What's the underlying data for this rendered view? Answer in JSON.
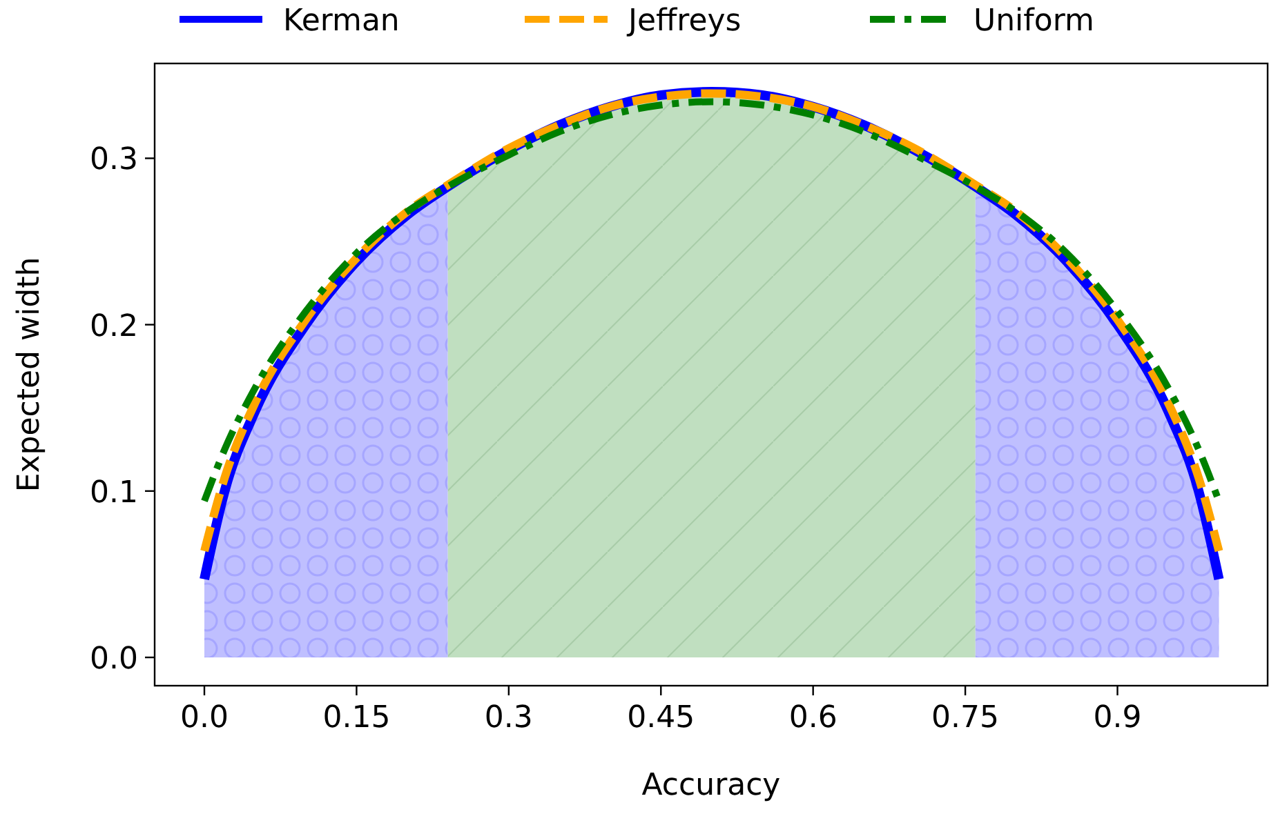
{
  "chart_data": {
    "type": "line",
    "xlabel": "Accuracy",
    "ylabel": "Expected width",
    "x": [
      0,
      0.02,
      0.05,
      0.1,
      0.15,
      0.2,
      0.24,
      0.3,
      0.35,
      0.4,
      0.45,
      0.5,
      0.55,
      0.6,
      0.65,
      0.7,
      0.76,
      0.8,
      0.85,
      0.9,
      0.95,
      0.98,
      1
    ],
    "series": [
      {
        "type": "area",
        "color": "#bfbfff",
        "x": [
          0,
          0.02,
          0.05,
          0.1,
          0.15,
          0.2,
          0.24
        ],
        "values": [
          0.047,
          0.1,
          0.148,
          0.2,
          0.238,
          0.266,
          0.283
        ]
      },
      {
        "type": "area",
        "color": "#c0dfc0",
        "x": [
          0.24,
          0.3,
          0.35,
          0.4,
          0.45,
          0.5,
          0.55,
          0.6,
          0.65,
          0.7,
          0.76
        ],
        "values": [
          0.283,
          0.305,
          0.32,
          0.331,
          0.338,
          0.34,
          0.338,
          0.331,
          0.32,
          0.305,
          0.283
        ]
      },
      {
        "type": "area",
        "color": "#bfbfff",
        "x": [
          0.76,
          0.8,
          0.85,
          0.9,
          0.95,
          0.98,
          1
        ],
        "values": [
          0.283,
          0.266,
          0.238,
          0.2,
          0.148,
          0.1,
          0.047
        ]
      },
      {
        "name": "Kerman",
        "color": "#0000ff",
        "line_style": "solid",
        "values": [
          0.047,
          0.1,
          0.148,
          0.2,
          0.238,
          0.266,
          0.283,
          0.305,
          0.32,
          0.331,
          0.338,
          0.34,
          0.338,
          0.331,
          0.32,
          0.305,
          0.283,
          0.266,
          0.238,
          0.2,
          0.148,
          0.1,
          0.047
        ]
      },
      {
        "name": "Jeffreys",
        "color": "#ffa500",
        "line_style": "dashed",
        "values": [
          0.064,
          0.108,
          0.153,
          0.203,
          0.24,
          0.268,
          0.284,
          0.306,
          0.32,
          0.331,
          0.337,
          0.339,
          0.337,
          0.331,
          0.32,
          0.306,
          0.284,
          0.268,
          0.24,
          0.203,
          0.153,
          0.108,
          0.064
        ]
      },
      {
        "name": "Uniform",
        "color": "#008000",
        "line_style": "dashdot",
        "values": [
          0.094,
          0.125,
          0.162,
          0.208,
          0.243,
          0.268,
          0.283,
          0.302,
          0.316,
          0.326,
          0.332,
          0.334,
          0.332,
          0.326,
          0.316,
          0.302,
          0.283,
          0.268,
          0.243,
          0.208,
          0.162,
          0.125,
          0.094
        ]
      }
    ],
    "xlim": [
      -0.049,
      1.048
    ],
    "xticks": [
      {
        "value": 0,
        "label": "0.0"
      },
      0.15,
      0.3,
      0.45,
      0.6,
      0.75,
      0.9
    ],
    "ylim": [
      -0.017,
      0.357
    ],
    "yticks": [
      {
        "value": 0,
        "label": "0.0"
      },
      0.1,
      0.2,
      0.3
    ],
    "grid": false,
    "legend": "top"
  }
}
